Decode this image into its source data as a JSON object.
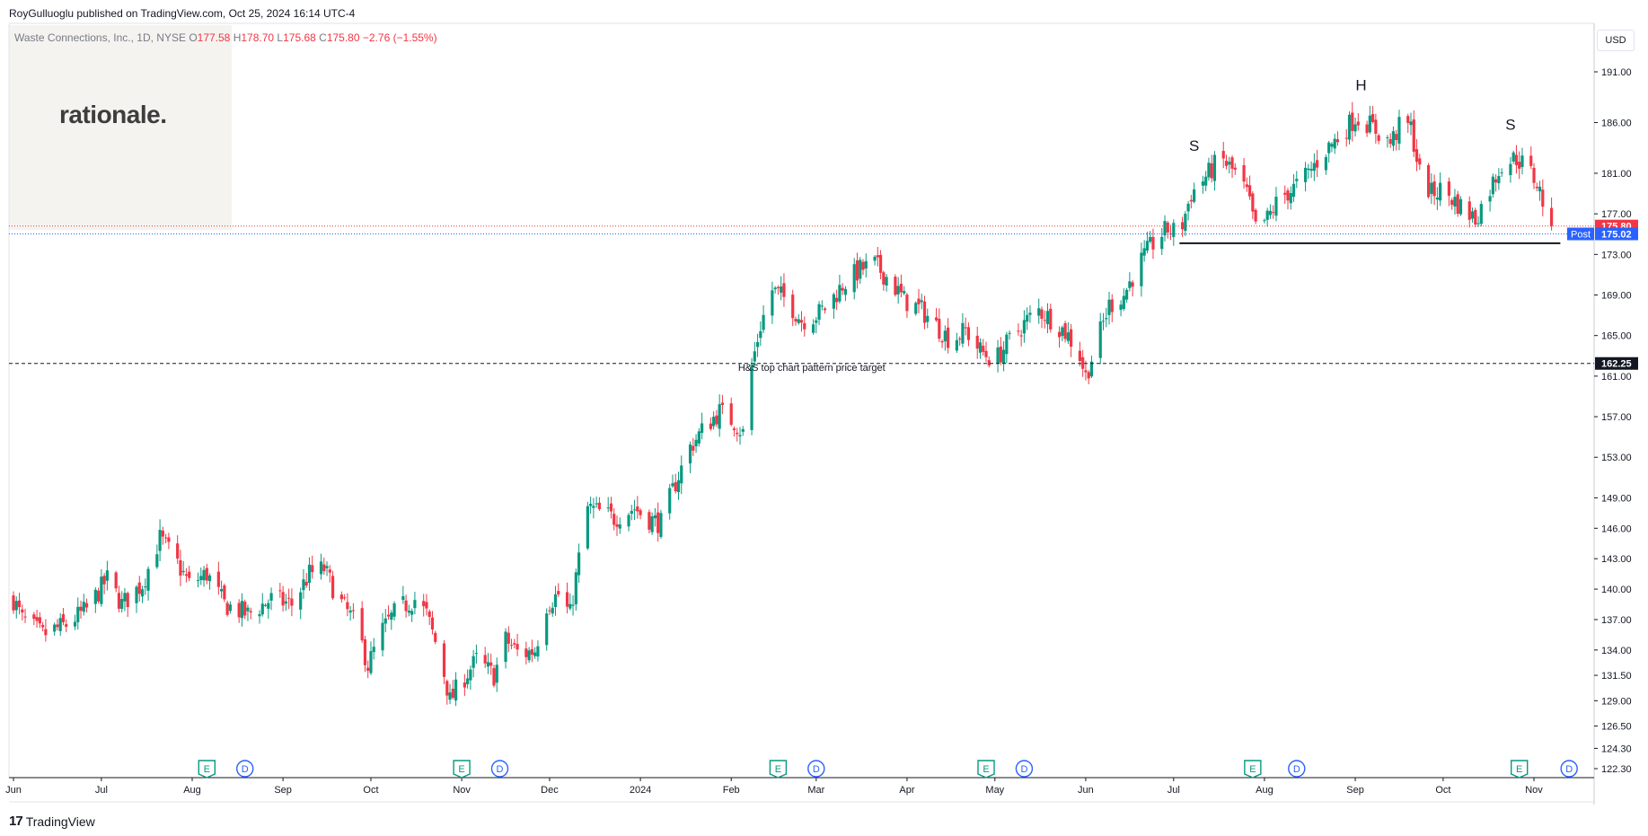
{
  "header": {
    "credit": "RoyGulluoglu published on TradingView.com, Oct 25, 2024 16:14 UTC-4"
  },
  "legend": {
    "symbol": "Waste Connections, Inc., 1D, NYSE",
    "open_label": "O",
    "open": "177.58",
    "high_label": "H",
    "high": "178.70",
    "low_label": "L",
    "low": "175.68",
    "close_label": "C",
    "close": "175.80",
    "change": "−2.76 (−1.55%)"
  },
  "logo": {
    "text": "rationale."
  },
  "currency_button": "USD",
  "footer": {
    "brand": "TradingView"
  },
  "colors": {
    "up": "#089981",
    "down": "#f23645",
    "post": "#2962ff",
    "text": "#131722",
    "grid_border": "#e0e3eb"
  },
  "chart_data": {
    "type": "candlestick",
    "ylim": [
      121.2,
      194.2
    ],
    "y_ticks": [
      191.0,
      186.0,
      181.0,
      177.0,
      173.0,
      169.0,
      165.0,
      161.0,
      157.0,
      153.0,
      149.0,
      146.0,
      143.0,
      140.0,
      137.0,
      134.0,
      131.5,
      129.0,
      126.5,
      124.3,
      122.3
    ],
    "x_labels": [
      {
        "label": "Jun",
        "day": 0
      },
      {
        "label": "Jul",
        "day": 30
      },
      {
        "label": "Aug",
        "day": 61
      },
      {
        "label": "Sep",
        "day": 92
      },
      {
        "label": "Oct",
        "day": 122
      },
      {
        "label": "Nov",
        "day": 153
      },
      {
        "label": "Dec",
        "day": 183
      },
      {
        "label": "2024",
        "day": 214
      },
      {
        "label": "Feb",
        "day": 245
      },
      {
        "label": "Mar",
        "day": 274
      },
      {
        "label": "Apr",
        "day": 305
      },
      {
        "label": "May",
        "day": 335
      },
      {
        "label": "Jun",
        "day": 366
      },
      {
        "label": "Jul",
        "day": 396
      },
      {
        "label": "Aug",
        "day": 427
      },
      {
        "label": "Sep",
        "day": 458
      },
      {
        "label": "Oct",
        "day": 488
      },
      {
        "label": "Nov",
        "day": 519
      }
    ],
    "x_end_day": 538,
    "anchors": [
      [
        0,
        139.0
      ],
      [
        3,
        137.0
      ],
      [
        10,
        135.5
      ],
      [
        18,
        136.5
      ],
      [
        25,
        138.0
      ],
      [
        32,
        141.0
      ],
      [
        37,
        138.5
      ],
      [
        44,
        140.5
      ],
      [
        50,
        145.0
      ],
      [
        55,
        143.0
      ],
      [
        60,
        140.5
      ],
      [
        66,
        141.5
      ],
      [
        72,
        138.5
      ],
      [
        80,
        137.5
      ],
      [
        88,
        139.0
      ],
      [
        95,
        138.5
      ],
      [
        101,
        141.5
      ],
      [
        106,
        142.0
      ],
      [
        111,
        139.0
      ],
      [
        117,
        136.5
      ],
      [
        121,
        132.5
      ],
      [
        126,
        136.0
      ],
      [
        131,
        138.0
      ],
      [
        137,
        139.0
      ],
      [
        141,
        137.5
      ],
      [
        146,
        133.0
      ],
      [
        149,
        129.0
      ],
      [
        152,
        130.5
      ],
      [
        158,
        133.0
      ],
      [
        164,
        131.5
      ],
      [
        168,
        135.0
      ],
      [
        173,
        133.5
      ],
      [
        178,
        134.0
      ],
      [
        182,
        138.5
      ],
      [
        186,
        139.5
      ],
      [
        190,
        137.5
      ],
      [
        193,
        143.0
      ],
      [
        196,
        148.0
      ],
      [
        201,
        147.5
      ],
      [
        205,
        147.0
      ],
      [
        212,
        148.0
      ],
      [
        216,
        147.0
      ],
      [
        221,
        146.5
      ],
      [
        226,
        150.5
      ],
      [
        231,
        154.0
      ],
      [
        236,
        156.0
      ],
      [
        241,
        157.5
      ],
      [
        246,
        156.5
      ],
      [
        250,
        155.0
      ],
      [
        252,
        162.0
      ],
      [
        255,
        166.0
      ],
      [
        259,
        169.5
      ],
      [
        264,
        168.5
      ],
      [
        269,
        166.5
      ],
      [
        274,
        167.0
      ],
      [
        278,
        168.0
      ],
      [
        283,
        170.0
      ],
      [
        289,
        171.5
      ],
      [
        294,
        172.0
      ],
      [
        299,
        170.5
      ],
      [
        304,
        168.5
      ],
      [
        310,
        167.5
      ],
      [
        315,
        166.0
      ],
      [
        320,
        164.5
      ],
      [
        325,
        165.5
      ],
      [
        330,
        163.5
      ],
      [
        335,
        162.5
      ],
      [
        340,
        164.5
      ],
      [
        346,
        166.5
      ],
      [
        350,
        167.5
      ],
      [
        355,
        166.5
      ],
      [
        360,
        165.0
      ],
      [
        364,
        163.0
      ],
      [
        366,
        161.0
      ],
      [
        370,
        164.5
      ],
      [
        374,
        168.0
      ],
      [
        379,
        169.0
      ],
      [
        384,
        172.0
      ],
      [
        390,
        174.5
      ],
      [
        394,
        175.5
      ],
      [
        398,
        175.0
      ],
      [
        402,
        179.0
      ],
      [
        408,
        181.0
      ],
      [
        412,
        182.5
      ],
      [
        417,
        181.0
      ],
      [
        421,
        179.0
      ],
      [
        424,
        175.5
      ],
      [
        428,
        176.5
      ],
      [
        432,
        178.5
      ],
      [
        437,
        179.5
      ],
      [
        442,
        181.0
      ],
      [
        447,
        183.0
      ],
      [
        452,
        184.5
      ],
      [
        458,
        186.5
      ],
      [
        462,
        186.0
      ],
      [
        466,
        185.0
      ],
      [
        470,
        184.0
      ],
      [
        474,
        186.0
      ],
      [
        477,
        185.5
      ],
      [
        480,
        181.0
      ],
      [
        484,
        179.0
      ],
      [
        488,
        179.5
      ],
      [
        491,
        178.5
      ],
      [
        495,
        177.5
      ],
      [
        499,
        176.5
      ],
      [
        504,
        179.5
      ],
      [
        508,
        182.0
      ],
      [
        513,
        182.5
      ],
      [
        517,
        181.5
      ],
      [
        520,
        180.0
      ],
      [
        523,
        177.5
      ],
      [
        525,
        175.8
      ]
    ],
    "annotations": [
      {
        "text": "S",
        "day": 403,
        "price": 183.2
      },
      {
        "text": "H",
        "day": 460,
        "price": 189.2
      },
      {
        "text": "S",
        "day": 511,
        "price": 185.3
      },
      {
        "text": "H&S top chart pattern price target",
        "day": 278,
        "price": 161.5
      }
    ],
    "neckline": {
      "from_day": 398,
      "to_day": 528,
      "price": 174.1
    },
    "target_line": {
      "price": 162.25,
      "label": "162.25"
    },
    "last_price": {
      "price": 175.8,
      "label": "175.80"
    },
    "post_price": {
      "price": 175.02,
      "label": "175.02",
      "tag": "Post"
    },
    "events": [
      {
        "type": "E",
        "day": 66
      },
      {
        "type": "D",
        "day": 79
      },
      {
        "type": "E",
        "day": 153
      },
      {
        "type": "D",
        "day": 166
      },
      {
        "type": "E",
        "day": 261
      },
      {
        "type": "D",
        "day": 274
      },
      {
        "type": "E",
        "day": 332
      },
      {
        "type": "D",
        "day": 345
      },
      {
        "type": "E",
        "day": 423
      },
      {
        "type": "D",
        "day": 438
      },
      {
        "type": "E",
        "day": 514
      },
      {
        "type": "D",
        "day": 531
      }
    ]
  }
}
